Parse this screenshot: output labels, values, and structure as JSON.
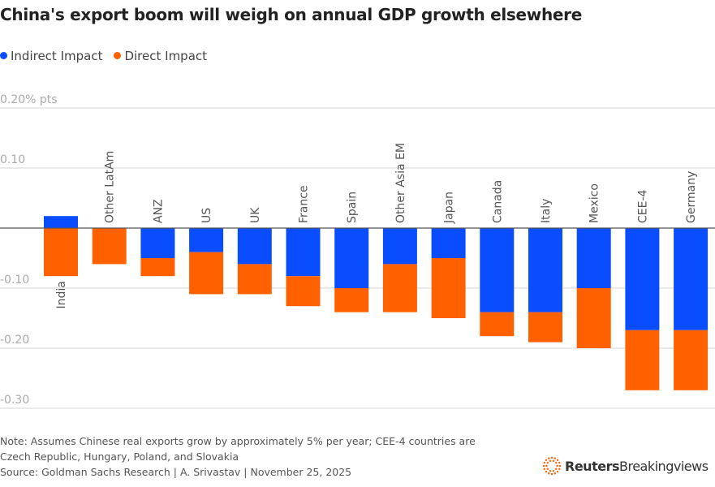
{
  "title": "China's export boom will weigh on annual GDP growth elsewhere",
  "legend": [
    {
      "label": "Indirect Impact",
      "color": "#0a4dff"
    },
    {
      "label": "Direct Impact",
      "color": "#ff6100"
    }
  ],
  "note_lines": [
    "Note: Assumes Chinese real exports grow by approximately 5% per year; CEE-4 countries are",
    "Czech Republic, Hungary, Poland, and Slovakia",
    "Source: Goldman Sachs Research | A. Srivastav | November 25, 2025"
  ],
  "logo": {
    "bold": "Reuters",
    "light": "Breakingviews"
  },
  "chart_data": {
    "type": "bar",
    "stacked": true,
    "title": "China's export boom will weigh on annual GDP growth elsewhere",
    "ylabel_unit": "% pts",
    "ylim": [
      -0.3,
      0.2
    ],
    "yticks": [
      0.2,
      0.1,
      0,
      -0.1,
      -0.2,
      -0.3
    ],
    "ytick_labels": [
      "0.20% pts",
      "0.10",
      "",
      "-0.10",
      "-0.20",
      "-0.30"
    ],
    "grid": true,
    "legend_position": "top-left",
    "categories": [
      "India",
      "Other LatAm",
      "ANZ",
      "US",
      "UK",
      "France",
      "Spain",
      "Other Asia EM",
      "Japan",
      "Canada",
      "Italy",
      "Mexico",
      "CEE-4",
      "Germany"
    ],
    "series": [
      {
        "name": "Indirect Impact",
        "color": "#0a4dff",
        "values": [
          0.02,
          0,
          -0.05,
          -0.04,
          -0.06,
          -0.08,
          -0.1,
          -0.06,
          -0.05,
          -0.14,
          -0.14,
          -0.1,
          -0.17,
          -0.17
        ]
      },
      {
        "name": "Direct Impact",
        "color": "#ff6100",
        "values": [
          -0.08,
          -0.06,
          -0.03,
          -0.07,
          -0.05,
          -0.05,
          -0.04,
          -0.08,
          -0.1,
          -0.04,
          -0.05,
          -0.1,
          -0.1,
          -0.1
        ]
      }
    ]
  }
}
